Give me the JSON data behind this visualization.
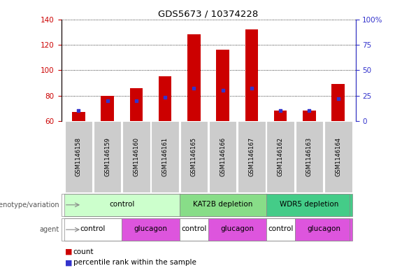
{
  "title": "GDS5673 / 10374228",
  "samples": [
    "GSM1146158",
    "GSM1146159",
    "GSM1146160",
    "GSM1146161",
    "GSM1146165",
    "GSM1146166",
    "GSM1146167",
    "GSM1146162",
    "GSM1146163",
    "GSM1146164"
  ],
  "count_values": [
    67,
    80,
    86,
    95,
    128,
    116,
    132,
    68,
    68,
    89
  ],
  "percentile_values": [
    10,
    20,
    20,
    23,
    32,
    30,
    32,
    10,
    10,
    22
  ],
  "ylim_left": [
    60,
    140
  ],
  "ylim_right": [
    0,
    100
  ],
  "yticks_left": [
    60,
    80,
    100,
    120,
    140
  ],
  "yticks_right": [
    0,
    25,
    50,
    75,
    100
  ],
  "bar_color": "#cc0000",
  "percentile_color": "#3333cc",
  "bar_width": 0.45,
  "genotype_groups": [
    {
      "label": "control",
      "span": [
        0,
        4
      ],
      "color": "#ccffcc"
    },
    {
      "label": "KAT2B depletion",
      "span": [
        4,
        7
      ],
      "color": "#88dd88"
    },
    {
      "label": "WDR5 depletion",
      "span": [
        7,
        10
      ],
      "color": "#44cc88"
    }
  ],
  "agent_groups": [
    {
      "label": "control",
      "span": [
        0,
        2
      ],
      "color": "#ffffff"
    },
    {
      "label": "glucagon",
      "span": [
        2,
        4
      ],
      "color": "#dd55dd"
    },
    {
      "label": "control",
      "span": [
        4,
        5
      ],
      "color": "#ffffff"
    },
    {
      "label": "glucagon",
      "span": [
        5,
        7
      ],
      "color": "#dd55dd"
    },
    {
      "label": "control",
      "span": [
        7,
        8
      ],
      "color": "#ffffff"
    },
    {
      "label": "glucagon",
      "span": [
        8,
        10
      ],
      "color": "#dd55dd"
    }
  ],
  "legend_count_label": "count",
  "legend_percentile_label": "percentile rank within the sample",
  "genotype_row_label": "genotype/variation",
  "agent_row_label": "agent",
  "sample_bg_color": "#cccccc",
  "left_axis_color": "#cc0000",
  "right_axis_color": "#3333cc",
  "group_divider_cols": [
    3.5,
    6.5
  ],
  "figsize": [
    5.65,
    3.93
  ],
  "dpi": 100
}
